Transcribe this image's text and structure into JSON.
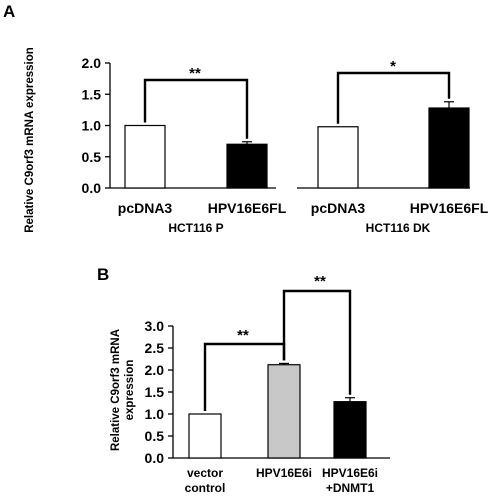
{
  "panels": {
    "A": {
      "letter": "A",
      "ylabel": "Relative C9orf3 mRNA expression"
    },
    "B": {
      "letter": "B",
      "ylabel_lines": [
        "Relative C9orf3 mRNA",
        "expression"
      ]
    }
  },
  "chart_data": [
    {
      "type": "bar",
      "id": "A-HCT116P",
      "group_label": "HCT116 P",
      "categories": [
        "pcDNA3",
        "HPV16E6FL"
      ],
      "values": [
        1.0,
        0.7
      ],
      "errors": [
        0.0,
        0.04
      ],
      "colors": [
        "#ffffff",
        "#000000"
      ],
      "ylim": [
        0,
        2.0
      ],
      "yticks": [
        "0.0",
        "0.5",
        "1.0",
        "1.5",
        "2.0"
      ],
      "significance": [
        {
          "from": 0,
          "to": 1,
          "label": "**"
        }
      ]
    },
    {
      "type": "bar",
      "id": "A-HCT116DK",
      "group_label": "HCT116 DK",
      "categories": [
        "pcDNA3",
        "HPV16E6FL"
      ],
      "values": [
        0.98,
        1.28
      ],
      "errors": [
        0.0,
        0.1
      ],
      "colors": [
        "#ffffff",
        "#000000"
      ],
      "ylim": [
        0,
        2.0
      ],
      "significance": [
        {
          "from": 0,
          "to": 1,
          "label": "*"
        }
      ]
    },
    {
      "type": "bar",
      "id": "B",
      "categories": [
        [
          "vector",
          "control"
        ],
        [
          "HPV16E6i"
        ],
        [
          "HPV16E6i",
          "+DNMT1"
        ]
      ],
      "values": [
        1.0,
        2.12,
        1.28
      ],
      "errors": [
        0.0,
        0.03,
        0.09
      ],
      "colors": [
        "#ffffff",
        "#c8c8c8",
        "#000000"
      ],
      "ylim": [
        0,
        3.0
      ],
      "yticks": [
        "0.0",
        "0.5",
        "1.0",
        "1.5",
        "2.0",
        "2.5",
        "3.0"
      ],
      "significance": [
        {
          "from": 0,
          "to": 1,
          "label": "**"
        },
        {
          "from": 1,
          "to": 2,
          "label": "**"
        }
      ]
    }
  ]
}
